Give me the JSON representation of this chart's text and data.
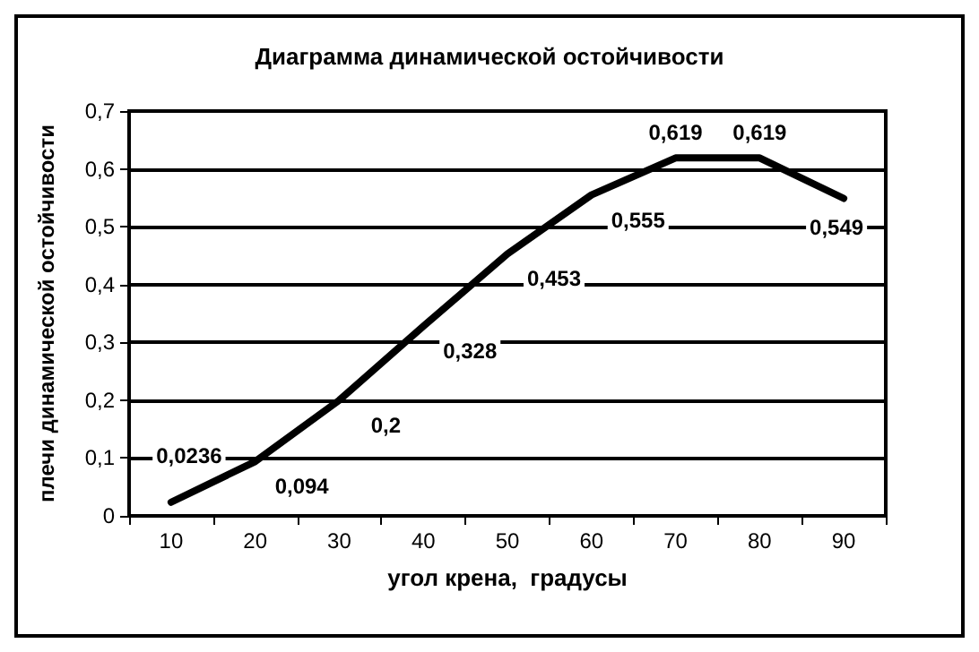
{
  "chart_data": {
    "type": "line",
    "title": "Диаграмма динамической остойчивости",
    "xlabel": "угол крена,  градусы",
    "ylabel": "плечи динамической остойчивости",
    "categories": [
      "10",
      "20",
      "30",
      "40",
      "50",
      "60",
      "70",
      "80",
      "90"
    ],
    "series": [
      {
        "color": "#000000",
        "values": [
          0.0236,
          0.094,
          0.2,
          0.328,
          0.453,
          0.555,
          0.619,
          0.619,
          0.549
        ],
        "value_labels": [
          "0,0236",
          "0,094",
          "0,2",
          "0,328",
          "0,453",
          "0,555",
          "0,619",
          "0,619",
          "0,549"
        ]
      }
    ],
    "ylim": [
      0,
      0.7
    ],
    "yticks": [
      {
        "value": 0,
        "label": "0"
      },
      {
        "value": 0.1,
        "label": "0,1"
      },
      {
        "value": 0.2,
        "label": "0,2"
      },
      {
        "value": 0.3,
        "label": "0,3"
      },
      {
        "value": 0.4,
        "label": "0,4"
      },
      {
        "value": 0.5,
        "label": "0,5"
      },
      {
        "value": 0.6,
        "label": "0,6"
      },
      {
        "value": 0.7,
        "label": "0,7"
      }
    ],
    "grid": "y",
    "marker": "none",
    "line_style": "solid"
  }
}
